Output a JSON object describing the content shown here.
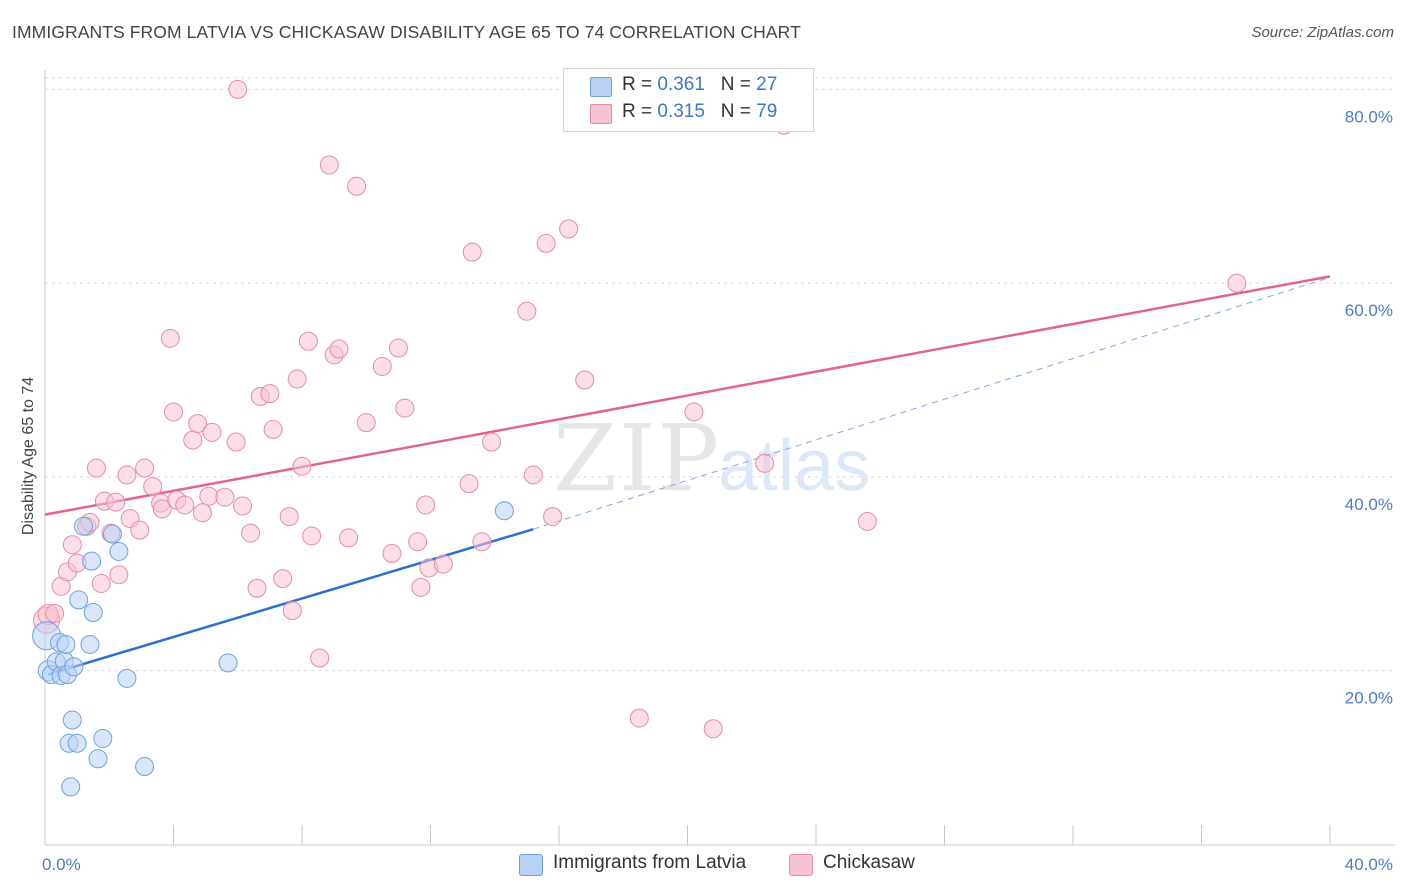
{
  "title": "IMMIGRANTS FROM LATVIA VS CHICKASAW DISABILITY AGE 65 TO 74 CORRELATION CHART",
  "source": "Source: ZipAtlas.com",
  "watermark": {
    "zip": "ZIP",
    "atlas": "atlas"
  },
  "legend": {
    "r_label": "R = ",
    "n_label": "N = ",
    "items": [
      {
        "r": "0.361",
        "n": "27"
      },
      {
        "r": "0.315",
        "n": "79"
      }
    ]
  },
  "bottom_legend": [
    "Immigrants from Latvia",
    "Chickasaw"
  ],
  "colors": {
    "blue_fill": "#b9d1f5",
    "blue_stroke": "#6f9fe0",
    "blue_line": "#2f6fcf",
    "pink_fill": "#f7c3d3",
    "pink_stroke": "#e78aa8",
    "pink_line": "#e0648e",
    "tick_label": "#4a7cc9",
    "grid": "#d9d9d9"
  },
  "chart_data": {
    "type": "scatter",
    "ylabel": "Disability Age 65 to 74",
    "xlim": [
      0,
      40
    ],
    "ylim": [
      2,
      82
    ],
    "y_ticks": [
      {
        "v": 20,
        "label": "20.0%"
      },
      {
        "v": 40,
        "label": "40.0%"
      },
      {
        "v": 60,
        "label": "60.0%"
      },
      {
        "v": 80,
        "label": "80.0%"
      }
    ],
    "x_ticks": [
      {
        "v": 0,
        "label": "0.0%"
      },
      {
        "v": 40,
        "label": "40.0%"
      }
    ],
    "x_minor_ticks": [
      0,
      4,
      8,
      12,
      16,
      20,
      24,
      28,
      32,
      36,
      40
    ],
    "grid": true,
    "series": [
      {
        "name": "Immigrants from Latvia",
        "r": 0.361,
        "n": 27,
        "trend": {
          "x": [
            0.1,
            15.2
          ],
          "y": [
            19.6,
            34.6
          ]
        },
        "trend_ext": {
          "x": [
            15.2,
            40.0
          ],
          "y": [
            34.6,
            60.6
          ]
        },
        "points": [
          [
            0.05,
            23.6,
            14
          ],
          [
            0.1,
            20.0,
            10
          ],
          [
            0.2,
            19.6,
            9
          ],
          [
            0.35,
            20.9,
            9
          ],
          [
            0.45,
            22.9,
            9
          ],
          [
            0.5,
            19.5,
            9
          ],
          [
            0.6,
            21.0,
            9
          ],
          [
            0.65,
            22.7,
            9
          ],
          [
            0.7,
            19.6,
            9
          ],
          [
            0.75,
            12.5,
            9
          ],
          [
            0.8,
            8.0,
            9
          ],
          [
            0.85,
            14.9,
            9
          ],
          [
            0.9,
            20.4,
            9
          ],
          [
            1.0,
            12.5,
            9
          ],
          [
            1.05,
            27.3,
            9
          ],
          [
            1.2,
            34.9,
            9
          ],
          [
            1.4,
            22.7,
            9
          ],
          [
            1.45,
            31.3,
            9
          ],
          [
            1.5,
            26.0,
            9
          ],
          [
            1.65,
            10.9,
            9
          ],
          [
            1.8,
            13.0,
            9
          ],
          [
            2.1,
            34.1,
            9
          ],
          [
            2.3,
            32.3,
            9
          ],
          [
            2.55,
            19.2,
            9
          ],
          [
            3.1,
            10.1,
            9
          ],
          [
            5.7,
            20.8,
            9
          ],
          [
            14.3,
            36.5,
            9
          ]
        ]
      },
      {
        "name": "Chickasaw",
        "r": 0.315,
        "n": 79,
        "trend": {
          "x": [
            0.0,
            40.0
          ],
          "y": [
            36.1,
            60.7
          ]
        },
        "points": [
          [
            0.05,
            25.2,
            13
          ],
          [
            0.1,
            25.8,
            10
          ],
          [
            0.3,
            25.9,
            9
          ],
          [
            0.5,
            28.7,
            9
          ],
          [
            0.7,
            30.2,
            9
          ],
          [
            0.85,
            33.0,
            9
          ],
          [
            1.0,
            31.1,
            9
          ],
          [
            1.3,
            34.9,
            9
          ],
          [
            1.4,
            35.3,
            9
          ],
          [
            1.6,
            40.9,
            9
          ],
          [
            1.75,
            29.0,
            9
          ],
          [
            1.85,
            37.5,
            9
          ],
          [
            2.05,
            34.2,
            9
          ],
          [
            2.2,
            37.4,
            9
          ],
          [
            2.3,
            29.9,
            9
          ],
          [
            2.55,
            40.2,
            9
          ],
          [
            2.65,
            35.7,
            9
          ],
          [
            2.95,
            34.5,
            9
          ],
          [
            3.1,
            40.9,
            9
          ],
          [
            3.35,
            39.0,
            9
          ],
          [
            3.6,
            37.3,
            9
          ],
          [
            3.65,
            36.7,
            9
          ],
          [
            3.9,
            54.3,
            9
          ],
          [
            4.0,
            46.7,
            9
          ],
          [
            4.1,
            37.6,
            9
          ],
          [
            4.35,
            37.1,
            9
          ],
          [
            4.6,
            43.8,
            9
          ],
          [
            4.75,
            45.5,
            9
          ],
          [
            4.9,
            36.3,
            9
          ],
          [
            5.1,
            38.0,
            9
          ],
          [
            5.2,
            44.6,
            9
          ],
          [
            5.6,
            37.9,
            9
          ],
          [
            5.95,
            43.6,
            9
          ],
          [
            6.15,
            37.0,
            9
          ],
          [
            6.4,
            34.2,
            9
          ],
          [
            6.6,
            28.5,
            9
          ],
          [
            6.7,
            48.3,
            9
          ],
          [
            7.0,
            48.6,
            9
          ],
          [
            7.1,
            44.9,
            9
          ],
          [
            7.4,
            29.5,
            9
          ],
          [
            7.6,
            35.9,
            9
          ],
          [
            7.7,
            26.2,
            9
          ],
          [
            7.85,
            50.1,
            9
          ],
          [
            8.0,
            41.1,
            9
          ],
          [
            8.2,
            54.0,
            9
          ],
          [
            8.3,
            33.9,
            9
          ],
          [
            8.55,
            21.3,
            9
          ],
          [
            8.85,
            72.2,
            9
          ],
          [
            9.0,
            52.6,
            9
          ],
          [
            9.15,
            53.2,
            9
          ],
          [
            9.45,
            33.7,
            9
          ],
          [
            9.7,
            70.0,
            9
          ],
          [
            10.0,
            45.6,
            9
          ],
          [
            10.5,
            51.4,
            9
          ],
          [
            10.8,
            32.1,
            9
          ],
          [
            11.0,
            53.3,
            9
          ],
          [
            11.2,
            47.1,
            9
          ],
          [
            11.6,
            33.3,
            9
          ],
          [
            11.7,
            28.6,
            9
          ],
          [
            11.85,
            37.1,
            9
          ],
          [
            11.95,
            30.6,
            9
          ],
          [
            12.4,
            31.0,
            9
          ],
          [
            13.2,
            39.3,
            9
          ],
          [
            13.3,
            63.2,
            9
          ],
          [
            13.6,
            33.3,
            9
          ],
          [
            13.9,
            43.6,
            9
          ],
          [
            15.0,
            57.1,
            9
          ],
          [
            15.2,
            40.2,
            9
          ],
          [
            15.6,
            64.1,
            9
          ],
          [
            15.8,
            35.9,
            9
          ],
          [
            16.3,
            65.6,
            9
          ],
          [
            16.8,
            50.0,
            9
          ],
          [
            18.5,
            15.1,
            9
          ],
          [
            20.2,
            46.7,
            9
          ],
          [
            20.8,
            14.0,
            9
          ],
          [
            22.4,
            41.4,
            9
          ],
          [
            23.0,
            76.3,
            9
          ],
          [
            25.6,
            35.4,
            9
          ],
          [
            37.1,
            60.0,
            9
          ]
        ],
        "offscale_points": [
          [
            6.0,
            80.0,
            9
          ]
        ]
      }
    ]
  }
}
